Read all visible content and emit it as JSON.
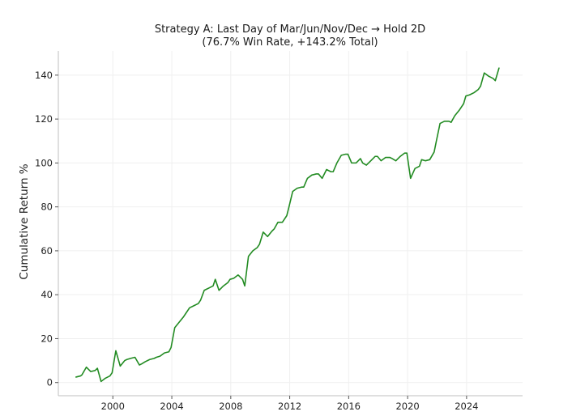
{
  "chart_data": {
    "type": "line",
    "title": "Strategy A: Last Day of Mar/Jun/Nov/Dec → Hold 2D",
    "subtitle": "(76.7% Win Rate, +143.2% Total)",
    "xlabel": "",
    "ylabel": "Cumulative Return %",
    "xlim": [
      1996.3,
      2027.8
    ],
    "ylim": [
      -6,
      151
    ],
    "xticks": [
      2000,
      2004,
      2008,
      2012,
      2016,
      2020,
      2024
    ],
    "xtick_labels": [
      "2000",
      "2004",
      "2008",
      "2012",
      "2016",
      "2020",
      "2024"
    ],
    "yticks": [
      0,
      20,
      40,
      60,
      80,
      100,
      120,
      140
    ],
    "ytick_labels": [
      "0",
      "20",
      "40",
      "60",
      "80",
      "100",
      "120",
      "140"
    ],
    "grid": true,
    "line_color": "#228b22",
    "series": [
      {
        "x": [
          1997.5,
          1997.8,
          1997.9,
          1998.2,
          1998.5,
          1998.8,
          1998.95,
          1999.2,
          1999.5,
          1999.8,
          1999.95,
          2000.2,
          2000.5,
          2000.8,
          2000.95,
          2001.2,
          2001.5,
          2001.8,
          2001.95,
          2002.2,
          2002.5,
          2002.8,
          2002.95,
          2003.2,
          2003.5,
          2003.8,
          2003.95,
          2004.2,
          2004.5,
          2004.8,
          2004.95,
          2005.2,
          2005.5,
          2005.8,
          2005.95,
          2006.2,
          2006.5,
          2006.8,
          2006.95,
          2007.2,
          2007.5,
          2007.8,
          2007.95,
          2008.2,
          2008.5,
          2008.8,
          2008.95,
          2009.2,
          2009.5,
          2009.8,
          2009.95,
          2010.2,
          2010.5,
          2010.8,
          2010.95,
          2011.2,
          2011.5,
          2011.8,
          2011.95,
          2012.2,
          2012.5,
          2012.8,
          2012.95,
          2013.2,
          2013.5,
          2013.8,
          2013.95,
          2014.2,
          2014.5,
          2014.8,
          2014.95,
          2015.2,
          2015.5,
          2015.8,
          2015.95,
          2016.2,
          2016.5,
          2016.8,
          2016.95,
          2017.2,
          2017.5,
          2017.8,
          2017.95,
          2018.2,
          2018.5,
          2018.8,
          2018.95,
          2019.2,
          2019.5,
          2019.8,
          2019.95,
          2020.2,
          2020.5,
          2020.8,
          2020.95,
          2021.2,
          2021.5,
          2021.8,
          2021.95,
          2022.2,
          2022.5,
          2022.8,
          2022.95,
          2023.2,
          2023.5,
          2023.8,
          2023.95,
          2024.2,
          2024.5,
          2024.8,
          2024.95,
          2025.2,
          2025.5,
          2025.8,
          2025.95,
          2026.2
        ],
        "y": [
          2.5,
          3,
          3.5,
          7,
          5,
          5.5,
          6.5,
          0.5,
          2,
          3,
          4.5,
          14.5,
          7.5,
          10,
          10.5,
          11,
          11.5,
          8,
          8.5,
          9.5,
          10.5,
          11,
          11.5,
          12,
          13.5,
          14,
          16,
          25,
          27.5,
          30,
          31.5,
          34,
          35,
          36,
          37.5,
          42,
          43,
          44,
          47,
          42,
          44,
          45.5,
          47,
          47.5,
          49,
          47,
          44,
          57.5,
          60,
          61.5,
          63,
          68.5,
          66.5,
          69,
          70,
          73,
          73,
          76,
          80,
          87,
          88.5,
          89,
          89,
          93,
          94.5,
          95,
          95,
          93,
          97,
          96,
          96,
          100,
          103.5,
          104,
          104,
          100,
          100,
          102,
          100,
          99,
          101,
          103,
          103,
          101,
          102.5,
          102.5,
          102,
          101,
          103,
          104.5,
          104.5,
          93,
          97.5,
          98.5,
          101.5,
          101,
          101.5,
          105,
          110,
          118,
          119,
          119,
          118.5,
          121.5,
          124,
          127,
          130.5,
          131,
          132,
          133.5,
          135,
          141,
          139.5,
          138.5,
          137.5,
          143.2
        ]
      }
    ]
  }
}
